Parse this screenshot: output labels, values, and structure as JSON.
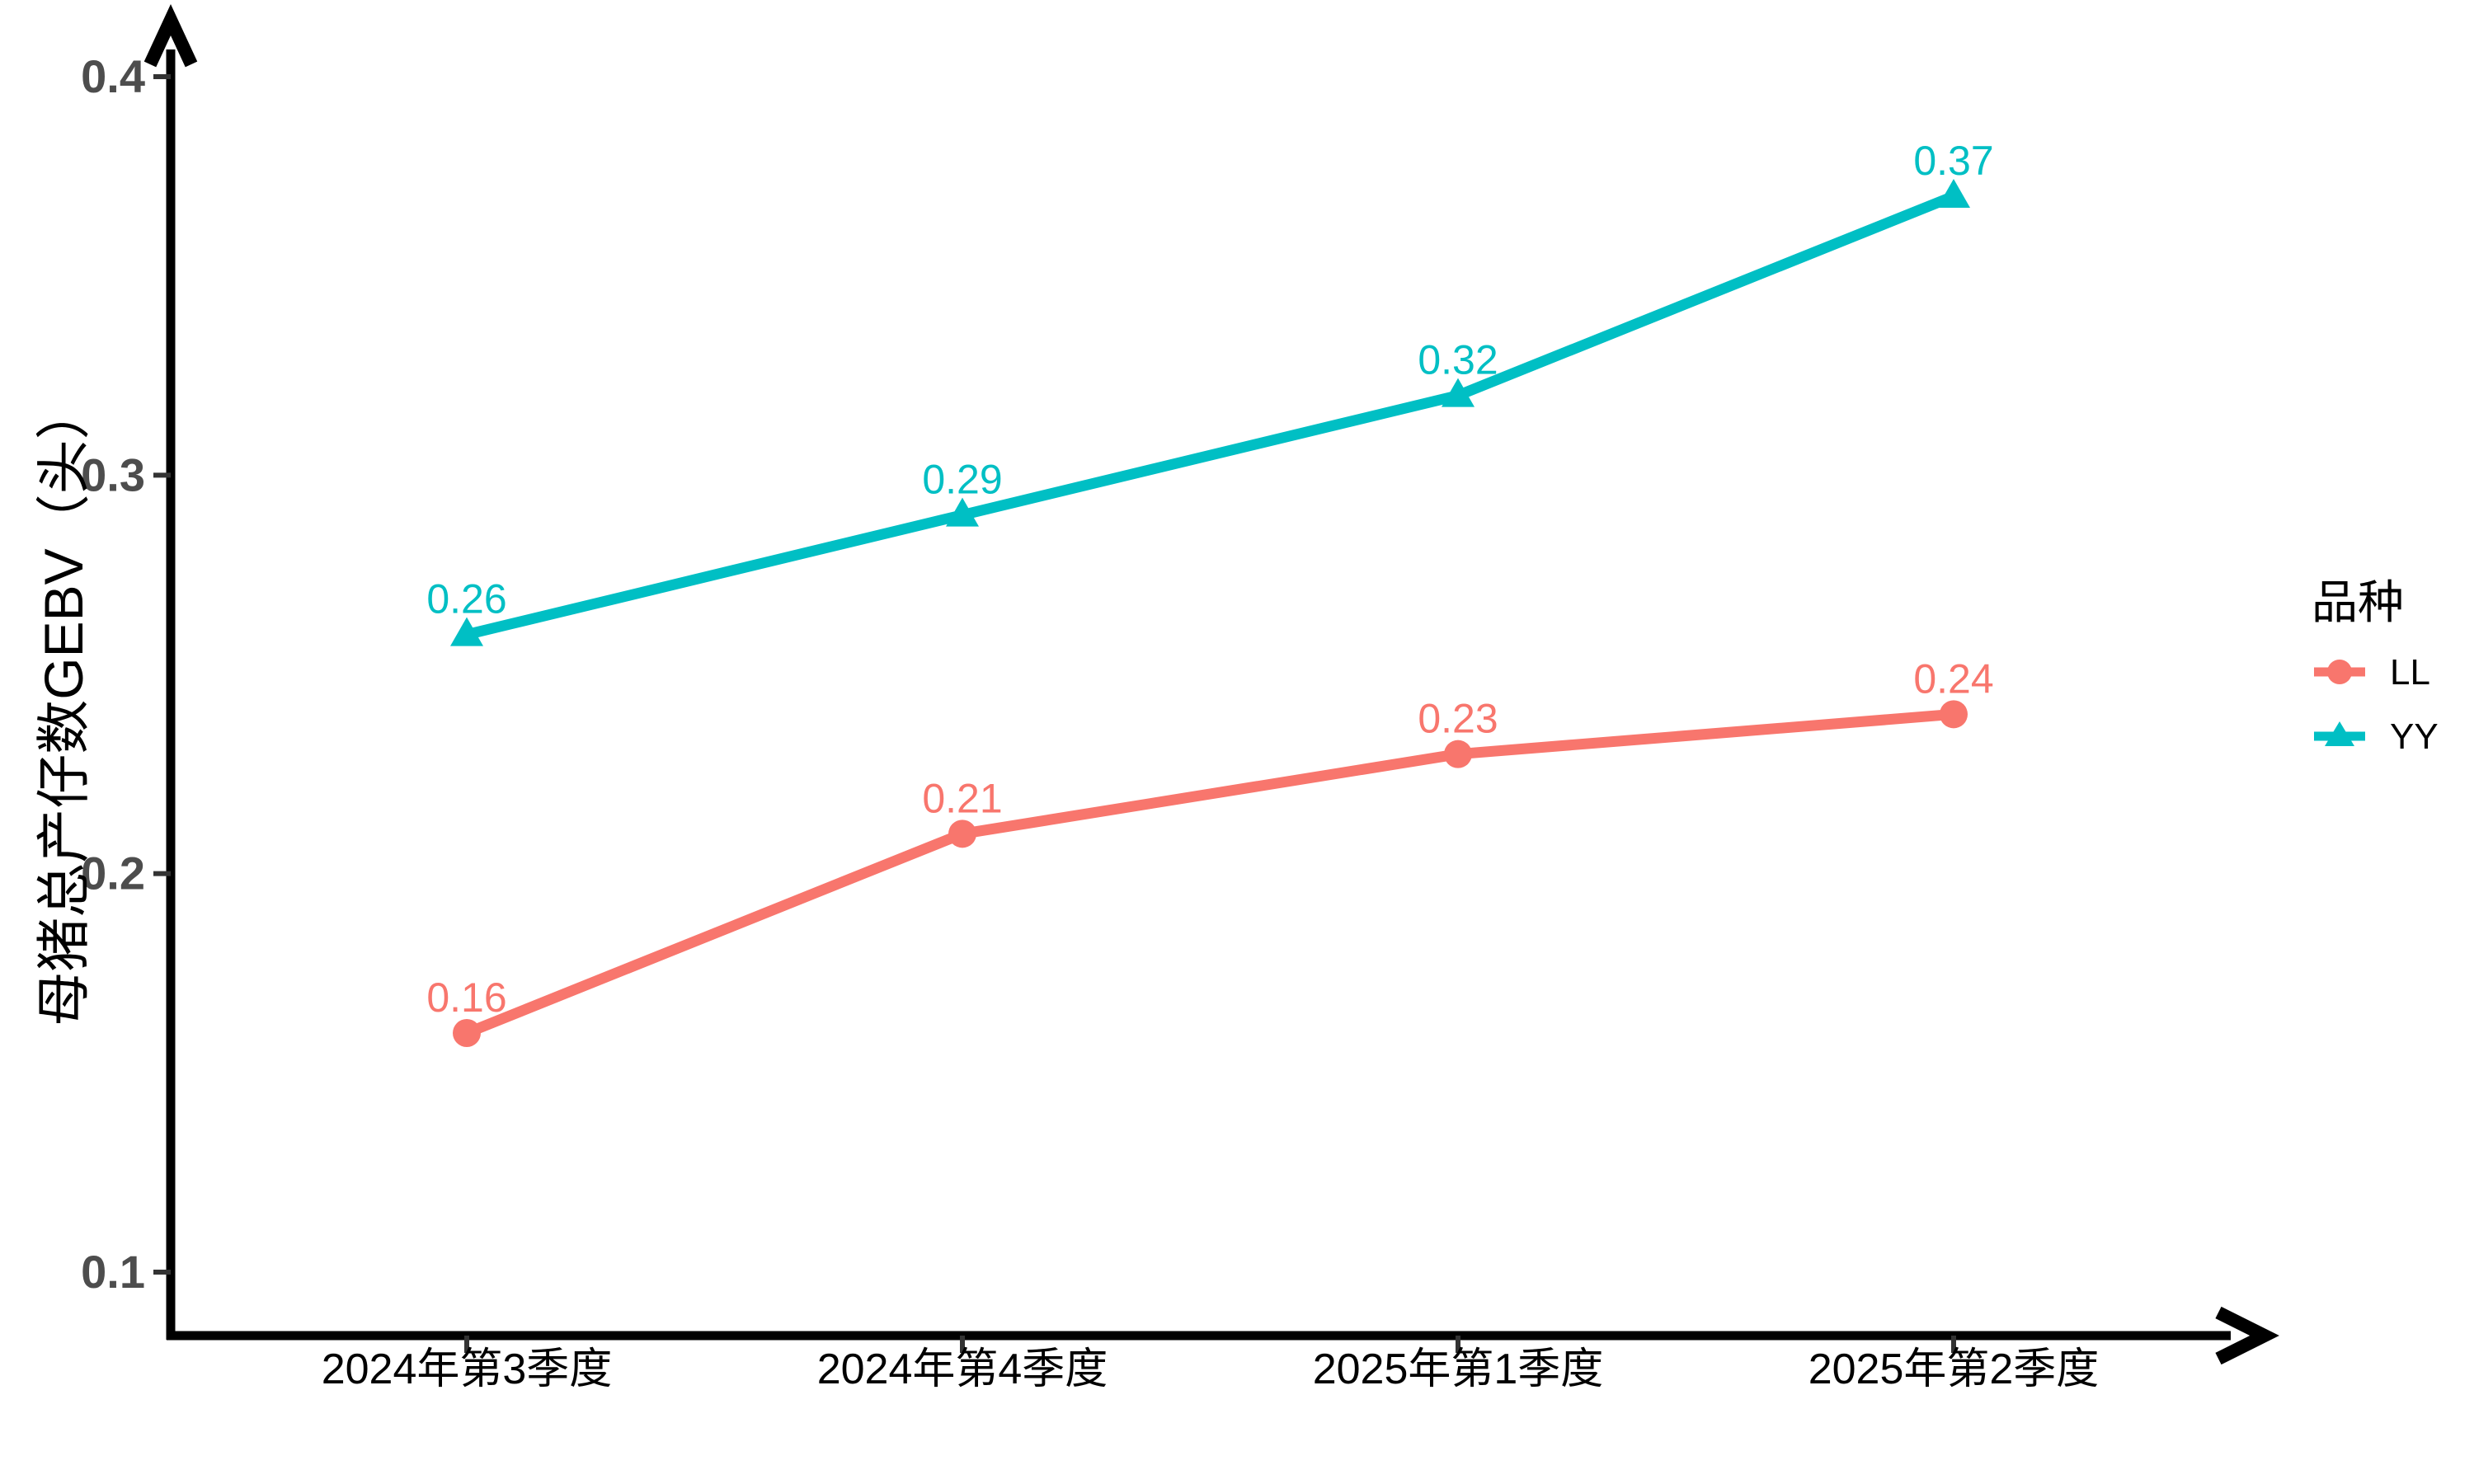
{
  "page": {
    "background": "#ffffff"
  },
  "chart_data": {
    "type": "line",
    "title": "",
    "xlabel": "",
    "ylabel": "母猪总产仔数GEBV（头）",
    "categories": [
      "2024年第3季度",
      "2024年第4季度",
      "2025年第1季度",
      "2025年第2季度"
    ],
    "series": [
      {
        "name": "LL",
        "values": [
          0.16,
          0.21,
          0.23,
          0.24
        ],
        "labels": [
          "0.16",
          "0.21",
          "0.23",
          "0.24"
        ],
        "color": "#F8766D",
        "marker": "circle"
      },
      {
        "name": "YY",
        "values": [
          0.26,
          0.29,
          0.32,
          0.37
        ],
        "labels": [
          "0.26",
          "0.29",
          "0.32",
          "0.37"
        ],
        "color": "#00BFC4",
        "marker": "triangle"
      }
    ],
    "ylim": [
      0.1,
      0.4
    ],
    "yticks": [
      0.1,
      0.2,
      0.3,
      0.4
    ],
    "ytick_labels": [
      "0.1",
      "0.2",
      "0.3",
      "0.4"
    ],
    "grid": false,
    "point_labels": true,
    "legend": {
      "title": "品种",
      "position": "right",
      "entries": [
        "LL",
        "YY"
      ]
    },
    "axis_style": {
      "axis_color": "#000000",
      "ytick_label_color": "#4d4d4d",
      "xtick_label_color": "#000000",
      "arrows": "both-axes"
    }
  }
}
